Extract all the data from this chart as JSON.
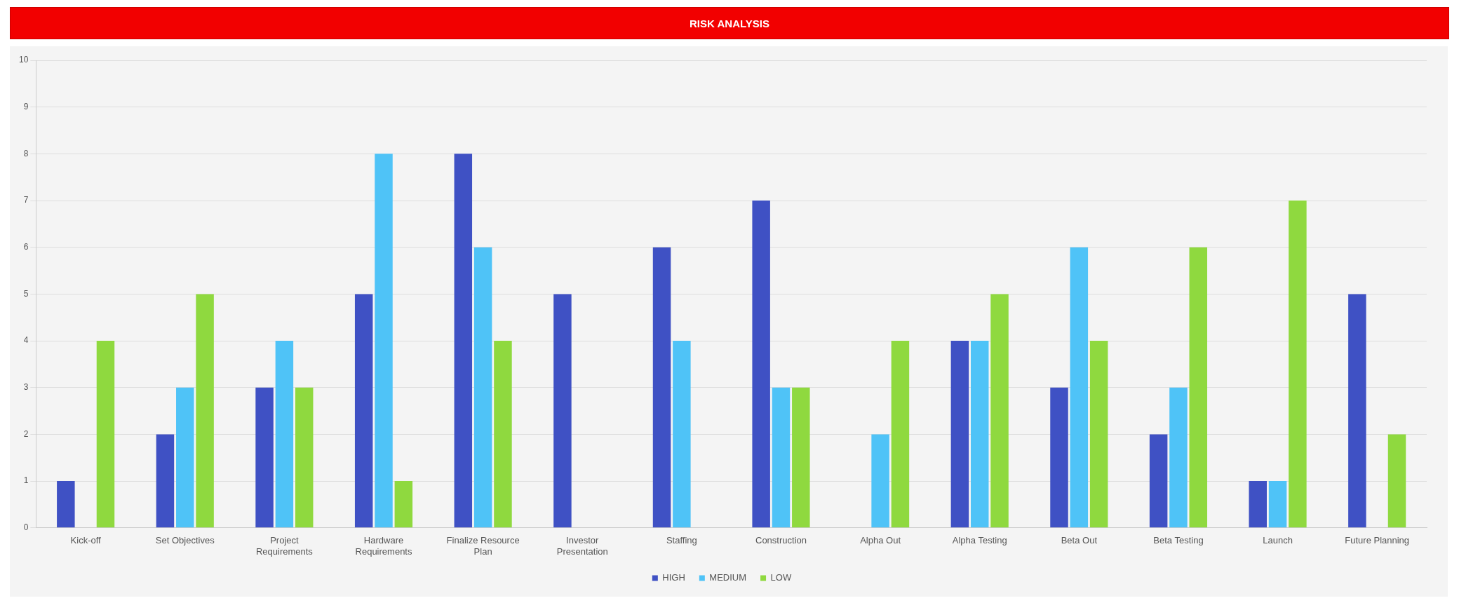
{
  "chart_data": {
    "type": "bar",
    "title": "RISK ANALYSIS",
    "categories": [
      "Kick-off",
      "Set Objectives",
      [
        "Project",
        "Requirements"
      ],
      [
        "Hardware",
        "Requirements"
      ],
      [
        "Finalize Resource",
        "Plan"
      ],
      [
        "Investor",
        "Presentation"
      ],
      "Staffing",
      "Construction",
      "Alpha Out",
      "Alpha Testing",
      "Beta Out",
      "Beta Testing",
      "Launch",
      "Future Planning"
    ],
    "series": [
      {
        "name": "HIGH",
        "color": "#3f51c4",
        "values": [
          1,
          2,
          3,
          5,
          8,
          5,
          6,
          7,
          null,
          4,
          3,
          2,
          1,
          5
        ]
      },
      {
        "name": "MEDIUM",
        "color": "#4fc3f7",
        "values": [
          null,
          3,
          4,
          8,
          6,
          null,
          4,
          3,
          2,
          4,
          6,
          3,
          1,
          null
        ]
      },
      {
        "name": "LOW",
        "color": "#8fd93f",
        "values": [
          4,
          5,
          3,
          1,
          4,
          null,
          null,
          3,
          4,
          5,
          4,
          6,
          7,
          2
        ]
      }
    ],
    "ylim": [
      0,
      10
    ],
    "yticks": [
      0,
      1,
      2,
      3,
      4,
      5,
      6,
      7,
      8,
      9,
      10
    ],
    "grid": "y",
    "legend": "bottom"
  }
}
